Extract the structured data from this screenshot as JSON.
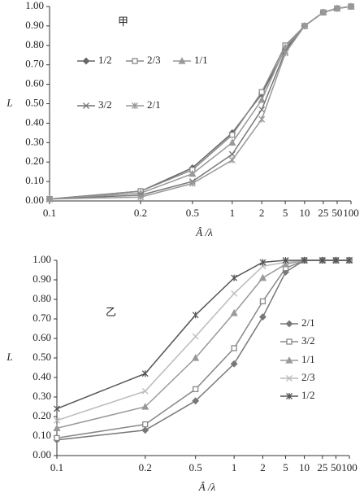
{
  "chart_data": [
    {
      "type": "line",
      "annotation": "甲",
      "xlabel": "Â /λ",
      "ylabel": "L",
      "categories": [
        "0.1",
        "0.2",
        "0.5",
        "1",
        "2",
        "5",
        "10",
        "25",
        "50",
        "100"
      ],
      "ylim": [
        0,
        1
      ],
      "yticks": [
        {
          "value": 0,
          "label": "0.00"
        },
        {
          "value": 0.1,
          "label": "0.10"
        },
        {
          "value": 0.2,
          "label": "0.20"
        },
        {
          "value": 0.3,
          "label": "0.30"
        },
        {
          "value": 0.4,
          "label": "0.40"
        },
        {
          "value": 0.5,
          "label": "0.50"
        },
        {
          "value": 0.6,
          "label": "0.60"
        },
        {
          "value": 0.7,
          "label": "0.70"
        },
        {
          "value": 0.8,
          "label": "0.80"
        },
        {
          "value": 0.9,
          "label": "0.90"
        },
        {
          "value": 1,
          "label": "1.00"
        }
      ],
      "series": [
        {
          "name": "1/2",
          "color": "#666666",
          "marker": "diamond",
          "values": [
            0.01,
            0.05,
            0.17,
            0.35,
            0.55,
            0.78,
            0.9,
            0.97,
            0.99,
            1.0
          ]
        },
        {
          "name": "2/3",
          "color": "#888888",
          "marker": "square",
          "values": [
            0.01,
            0.05,
            0.16,
            0.34,
            0.56,
            0.8,
            0.9,
            0.97,
            0.99,
            1.0
          ]
        },
        {
          "name": "1/1",
          "color": "#999999",
          "marker": "triangle",
          "values": [
            0.01,
            0.04,
            0.14,
            0.3,
            0.52,
            0.79,
            0.9,
            0.97,
            0.99,
            1.0
          ]
        },
        {
          "name": "3/2",
          "color": "#777777",
          "marker": "x",
          "values": [
            0.01,
            0.03,
            0.1,
            0.24,
            0.47,
            0.77,
            0.9,
            0.97,
            0.99,
            1.0
          ]
        },
        {
          "name": "2/1",
          "color": "#999999",
          "marker": "asterisk",
          "values": [
            0.01,
            0.02,
            0.09,
            0.21,
            0.42,
            0.76,
            0.9,
            0.97,
            0.99,
            1.0
          ]
        }
      ]
    },
    {
      "type": "line",
      "annotation": "乙",
      "xlabel": "Â /λ",
      "ylabel": "L",
      "categories": [
        "0.1",
        "0.2",
        "0.5",
        "1",
        "2",
        "5",
        "10",
        "25",
        "50",
        "100"
      ],
      "ylim": [
        0,
        1
      ],
      "yticks": [
        {
          "value": 0,
          "label": "0.00"
        },
        {
          "value": 0.1,
          "label": "0.10"
        },
        {
          "value": 0.2,
          "label": "0.20"
        },
        {
          "value": 0.3,
          "label": "0.30"
        },
        {
          "value": 0.4,
          "label": "0.40"
        },
        {
          "value": 0.5,
          "label": "0.50"
        },
        {
          "value": 0.6,
          "label": "0.60"
        },
        {
          "value": 0.7,
          "label": "0.70"
        },
        {
          "value": 0.8,
          "label": "0.80"
        },
        {
          "value": 0.9,
          "label": "0.90"
        },
        {
          "value": 1,
          "label": "1.00"
        }
      ],
      "series": [
        {
          "name": "2/1",
          "color": "#777777",
          "marker": "diamond",
          "values": [
            0.08,
            0.13,
            0.28,
            0.47,
            0.71,
            0.94,
            1,
            1,
            1,
            1
          ]
        },
        {
          "name": "3/2",
          "color": "#888888",
          "marker": "square",
          "values": [
            0.09,
            0.16,
            0.34,
            0.55,
            0.79,
            0.96,
            1,
            1,
            1,
            1
          ]
        },
        {
          "name": "1/1",
          "color": "#999999",
          "marker": "triangle",
          "values": [
            0.14,
            0.25,
            0.5,
            0.73,
            0.91,
            0.98,
            1,
            1,
            1,
            1
          ]
        },
        {
          "name": "2/3",
          "color": "#bbbbbb",
          "marker": "x",
          "values": [
            0.18,
            0.33,
            0.61,
            0.83,
            0.97,
            0.99,
            1,
            1,
            1,
            1
          ]
        },
        {
          "name": "1/2",
          "color": "#555555",
          "marker": "asterisk",
          "values": [
            0.24,
            0.42,
            0.72,
            0.91,
            0.99,
            1,
            1,
            1,
            1,
            1
          ]
        }
      ]
    }
  ]
}
